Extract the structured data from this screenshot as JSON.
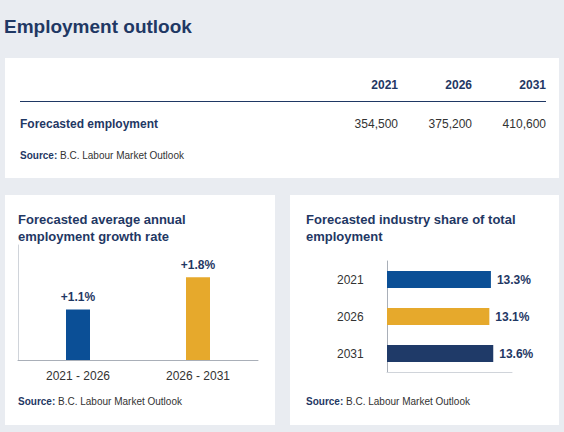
{
  "title": "Employment outlook",
  "table": {
    "columns": [
      "2021",
      "2026",
      "2031"
    ],
    "rows": [
      [
        "Forecasted employment",
        "354,500",
        "375,200",
        "410,600"
      ]
    ],
    "source": "Source: B.C. Labour Market Outlook"
  },
  "chart_data": [
    {
      "type": "bar",
      "title": "Forecasted average annual employment growth rate",
      "categories": [
        "2021 - 2026",
        "2026 - 2031"
      ],
      "values": [
        1.1,
        1.8
      ],
      "value_labels": [
        "+1.1%",
        "+1.8%"
      ],
      "colors": [
        "#0b4f96",
        "#e6a92c"
      ],
      "ylim": [
        0,
        2.5
      ],
      "grid": false,
      "data_labels": true,
      "tick_labels": "x",
      "source": "Source: B.C. Labour Market Outlook"
    },
    {
      "type": "bar",
      "title": "Forecasted industry share of total employment",
      "orientation": "horizontal",
      "categories": [
        "2021",
        "2026",
        "2031"
      ],
      "values": [
        13.3,
        13.1,
        13.6
      ],
      "value_labels": [
        "13.3%",
        "13.1%",
        "13.6%"
      ],
      "colors": [
        "#0b4f96",
        "#e6a92c",
        "#1f3a68"
      ],
      "xlim": [
        0,
        16
      ],
      "grid": false,
      "data_labels": true,
      "tick_labels": "y",
      "source": "Source: B.C. Labour Market Outlook"
    }
  ]
}
